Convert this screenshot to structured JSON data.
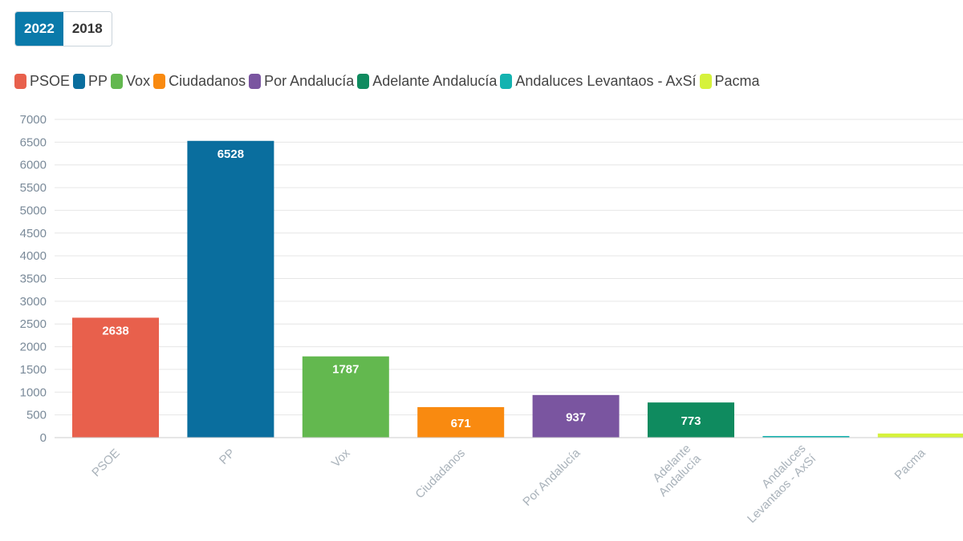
{
  "tabs": [
    {
      "label": "2022",
      "active": true
    },
    {
      "label": "2018",
      "active": false
    }
  ],
  "chart_data": {
    "type": "bar",
    "categories": [
      "PSOE",
      "PP",
      "Vox",
      "Ciudadanos",
      "Por Andalucía",
      "Adelante Andalucía",
      "Andaluces Levantaos - AxSí",
      "Pacma"
    ],
    "values": [
      2638,
      6528,
      1787,
      671,
      937,
      773,
      30,
      90
    ],
    "data_labels": [
      "2638",
      "6528",
      "1787",
      "671",
      "937",
      "773",
      "",
      ""
    ],
    "colors": [
      "#e8604c",
      "#0a6e9e",
      "#63b84f",
      "#f98a10",
      "#7a55a0",
      "#0f8b5f",
      "#14b3b0",
      "#d6f23c"
    ],
    "ylim": [
      0,
      7000
    ],
    "yticks": [
      0,
      500,
      1000,
      1500,
      2000,
      2500,
      3000,
      3500,
      4000,
      4500,
      5000,
      5500,
      6000,
      6500,
      7000
    ],
    "grid": true,
    "legend_position": "top-left",
    "title": "",
    "xlabel": "",
    "ylabel": ""
  }
}
